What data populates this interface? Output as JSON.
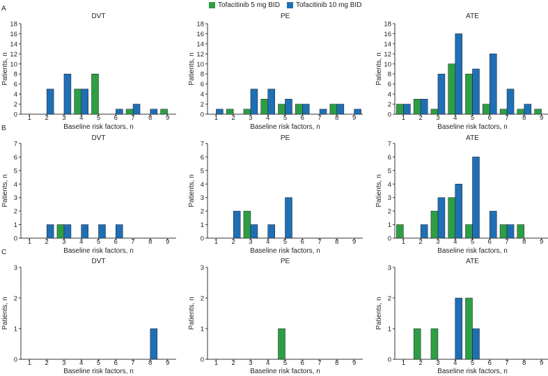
{
  "legend": {
    "s5": "Tofacitinib 5 mg BID",
    "s10": "Tofacitinib 10 mg BID"
  },
  "colors": {
    "s5": "#2e9e45",
    "s10": "#1f6fb5",
    "axis": "#333333"
  },
  "chart_data": [
    {
      "type": "bar",
      "panel": "A",
      "title": "DVT",
      "categories": [
        "1",
        "2",
        "3",
        "4",
        "5",
        "6",
        "7",
        "8",
        "9"
      ],
      "series": [
        {
          "name": "Tofacitinib 5 mg BID",
          "values": [
            0,
            0,
            0,
            5,
            8,
            0,
            1,
            0,
            1
          ]
        },
        {
          "name": "Tofacitinib 10 mg BID",
          "values": [
            0,
            5,
            8,
            5,
            0,
            1,
            2,
            1,
            0
          ]
        }
      ],
      "xlabel": "Baseline risk factors, n",
      "ylabel": "Patients, n",
      "ylim": [
        0,
        18
      ],
      "yticks": [
        "0",
        "2",
        "4",
        "6",
        "8",
        "10",
        "12",
        "14",
        "16",
        "18"
      ]
    },
    {
      "type": "bar",
      "panel": "A",
      "title": "PE",
      "categories": [
        "1",
        "2",
        "3",
        "4",
        "5",
        "6",
        "7",
        "8",
        "9"
      ],
      "series": [
        {
          "name": "Tofacitinib 5 mg BID",
          "values": [
            0,
            1,
            1,
            3,
            2,
            2,
            0,
            2,
            0
          ]
        },
        {
          "name": "Tofacitinib 10 mg BID",
          "values": [
            1,
            0,
            5,
            5,
            3,
            2,
            1,
            2,
            1
          ]
        }
      ],
      "xlabel": "Baseline risk factors, n",
      "ylabel": "Patients, n",
      "ylim": [
        0,
        18
      ],
      "yticks": [
        "0",
        "2",
        "4",
        "6",
        "8",
        "10",
        "12",
        "14",
        "16",
        "18"
      ]
    },
    {
      "type": "bar",
      "panel": "A",
      "title": "ATE",
      "categories": [
        "1",
        "2",
        "3",
        "4",
        "5",
        "6",
        "7",
        "8",
        "9"
      ],
      "series": [
        {
          "name": "Tofacitinib 5 mg BID",
          "values": [
            2,
            3,
            1,
            10,
            8,
            2,
            1,
            1,
            1
          ]
        },
        {
          "name": "Tofacitinib 10 mg BID",
          "values": [
            2,
            3,
            8,
            16,
            9,
            12,
            5,
            2,
            0
          ]
        }
      ],
      "xlabel": "Baseline risk factors, n",
      "ylabel": "Patients, n",
      "ylim": [
        0,
        18
      ],
      "yticks": [
        "0",
        "2",
        "4",
        "6",
        "8",
        "10",
        "12",
        "14",
        "16",
        "18"
      ]
    },
    {
      "type": "bar",
      "panel": "B",
      "title": "DVT",
      "categories": [
        "1",
        "2",
        "3",
        "4",
        "5",
        "6",
        "7",
        "8",
        "9"
      ],
      "series": [
        {
          "name": "Tofacitinib 5 mg BID",
          "values": [
            0,
            0,
            1,
            0,
            0,
            0,
            0,
            0,
            0
          ]
        },
        {
          "name": "Tofacitinib 10 mg BID",
          "values": [
            0,
            1,
            1,
            1,
            1,
            1,
            0,
            0,
            0
          ]
        }
      ],
      "xlabel": "Baseline risk factors, n",
      "ylabel": "Patients, n",
      "ylim": [
        0,
        7
      ],
      "yticks": [
        "0",
        "1",
        "2",
        "3",
        "4",
        "5",
        "6",
        "7"
      ]
    },
    {
      "type": "bar",
      "panel": "B",
      "title": "PE",
      "categories": [
        "1",
        "2",
        "3",
        "4",
        "5",
        "6",
        "7",
        "8",
        "9"
      ],
      "series": [
        {
          "name": "Tofacitinib 5 mg BID",
          "values": [
            0,
            0,
            2,
            0,
            0,
            0,
            0,
            0,
            0
          ]
        },
        {
          "name": "Tofacitinib 10 mg BID",
          "values": [
            0,
            2,
            1,
            1,
            3,
            0,
            0,
            0,
            0
          ]
        }
      ],
      "xlabel": "Baseline risk factors, n",
      "ylabel": "Patients, n",
      "ylim": [
        0,
        7
      ],
      "yticks": [
        "0",
        "1",
        "2",
        "3",
        "4",
        "5",
        "6",
        "7"
      ]
    },
    {
      "type": "bar",
      "panel": "B",
      "title": "ATE",
      "categories": [
        "1",
        "2",
        "3",
        "4",
        "5",
        "6",
        "7",
        "8",
        "9"
      ],
      "series": [
        {
          "name": "Tofacitinib 5 mg BID",
          "values": [
            1,
            0,
            2,
            3,
            1,
            0,
            1,
            1,
            0
          ]
        },
        {
          "name": "Tofacitinib 10 mg BID",
          "values": [
            0,
            1,
            3,
            4,
            6,
            2,
            1,
            0,
            0
          ]
        }
      ],
      "xlabel": "Baseline risk factors, n",
      "ylabel": "Patients, n",
      "ylim": [
        0,
        7
      ],
      "yticks": [
        "0",
        "1",
        "2",
        "3",
        "4",
        "5",
        "6",
        "7"
      ]
    },
    {
      "type": "bar",
      "panel": "C",
      "title": "DVT",
      "categories": [
        "1",
        "2",
        "3",
        "4",
        "5",
        "6",
        "7",
        "8",
        "9"
      ],
      "series": [
        {
          "name": "Tofacitinib 5 mg BID",
          "values": [
            0,
            0,
            0,
            0,
            0,
            0,
            0,
            0,
            0
          ]
        },
        {
          "name": "Tofacitinib 10 mg BID",
          "values": [
            0,
            0,
            0,
            0,
            0,
            0,
            0,
            1,
            0
          ]
        }
      ],
      "xlabel": "Baseline risk factors, n",
      "ylabel": "Patients, n",
      "ylim": [
        0,
        3
      ],
      "yticks": [
        "0",
        "1",
        "2",
        "3"
      ]
    },
    {
      "type": "bar",
      "panel": "C",
      "title": "PE",
      "categories": [
        "1",
        "2",
        "3",
        "4",
        "5",
        "6",
        "7",
        "8",
        "9"
      ],
      "series": [
        {
          "name": "Tofacitinib 5 mg BID",
          "values": [
            0,
            0,
            0,
            0,
            1,
            0,
            0,
            0,
            0
          ]
        },
        {
          "name": "Tofacitinib 10 mg BID",
          "values": [
            0,
            0,
            0,
            0,
            0,
            0,
            0,
            0,
            0
          ]
        }
      ],
      "xlabel": "Baseline risk factors, n",
      "ylabel": "Patients, n",
      "ylim": [
        0,
        3
      ],
      "yticks": [
        "0",
        "1",
        "2",
        "3"
      ]
    },
    {
      "type": "bar",
      "panel": "C",
      "title": "ATE",
      "categories": [
        "1",
        "2",
        "3",
        "4",
        "5",
        "6",
        "7",
        "8",
        "9"
      ],
      "series": [
        {
          "name": "Tofacitinib 5 mg BID",
          "values": [
            0,
            1,
            1,
            0,
            2,
            0,
            0,
            0,
            0
          ]
        },
        {
          "name": "Tofacitinib 10 mg BID",
          "values": [
            0,
            0,
            0,
            2,
            1,
            0,
            0,
            0,
            0
          ]
        }
      ],
      "xlabel": "Baseline risk factors, n",
      "ylabel": "Patients, n",
      "ylim": [
        0,
        3
      ],
      "yticks": [
        "0",
        "1",
        "2",
        "3"
      ]
    }
  ]
}
